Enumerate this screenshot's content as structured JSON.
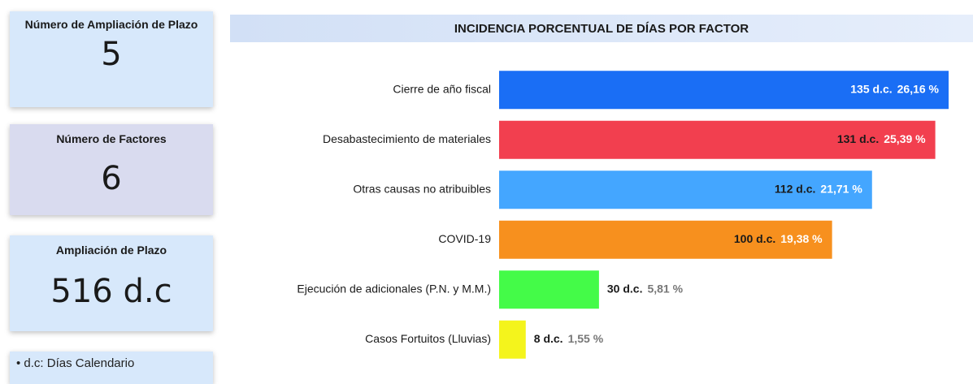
{
  "cards": [
    {
      "title": "Número de Ampliación de Plazo",
      "value": 5
    },
    {
      "title": "Número de Factores",
      "value": 6
    },
    {
      "title": "Ampliación de Plazo",
      "value": "516 d.c"
    }
  ],
  "note": "d.c: Días Calendario",
  "chart_data": {
    "type": "bar",
    "orientation": "horizontal",
    "title": "INCIDENCIA PORCENTUAL DE DÍAS POR FACTOR",
    "categories": [
      "Cierre de año fiscal",
      "Desabastecimiento de materiales",
      "Otras causas no atribuibles",
      "COVID-19",
      "Ejecución de adicionales (P.N. y M.M.)",
      "Casos Fortuitos (Lluvias)"
    ],
    "values": [
      135,
      131,
      112,
      100,
      30,
      8
    ],
    "value_labels": [
      "135 d.c.",
      "131 d.c.",
      "112 d.c.",
      "100 d.c.",
      "30 d.c.",
      "8 d.c."
    ],
    "percentages": [
      26.16,
      25.39,
      21.71,
      19.38,
      5.81,
      1.55
    ],
    "percentage_labels": [
      "26,16 %",
      "25,39 %",
      "21,71 %",
      "19,38 %",
      "5,81 %",
      "1,55 %"
    ],
    "colors": [
      "#1a6ef5",
      "#f23f4f",
      "#44a6ff",
      "#f7901e",
      "#44fb48",
      "#f4f41c"
    ]
  }
}
